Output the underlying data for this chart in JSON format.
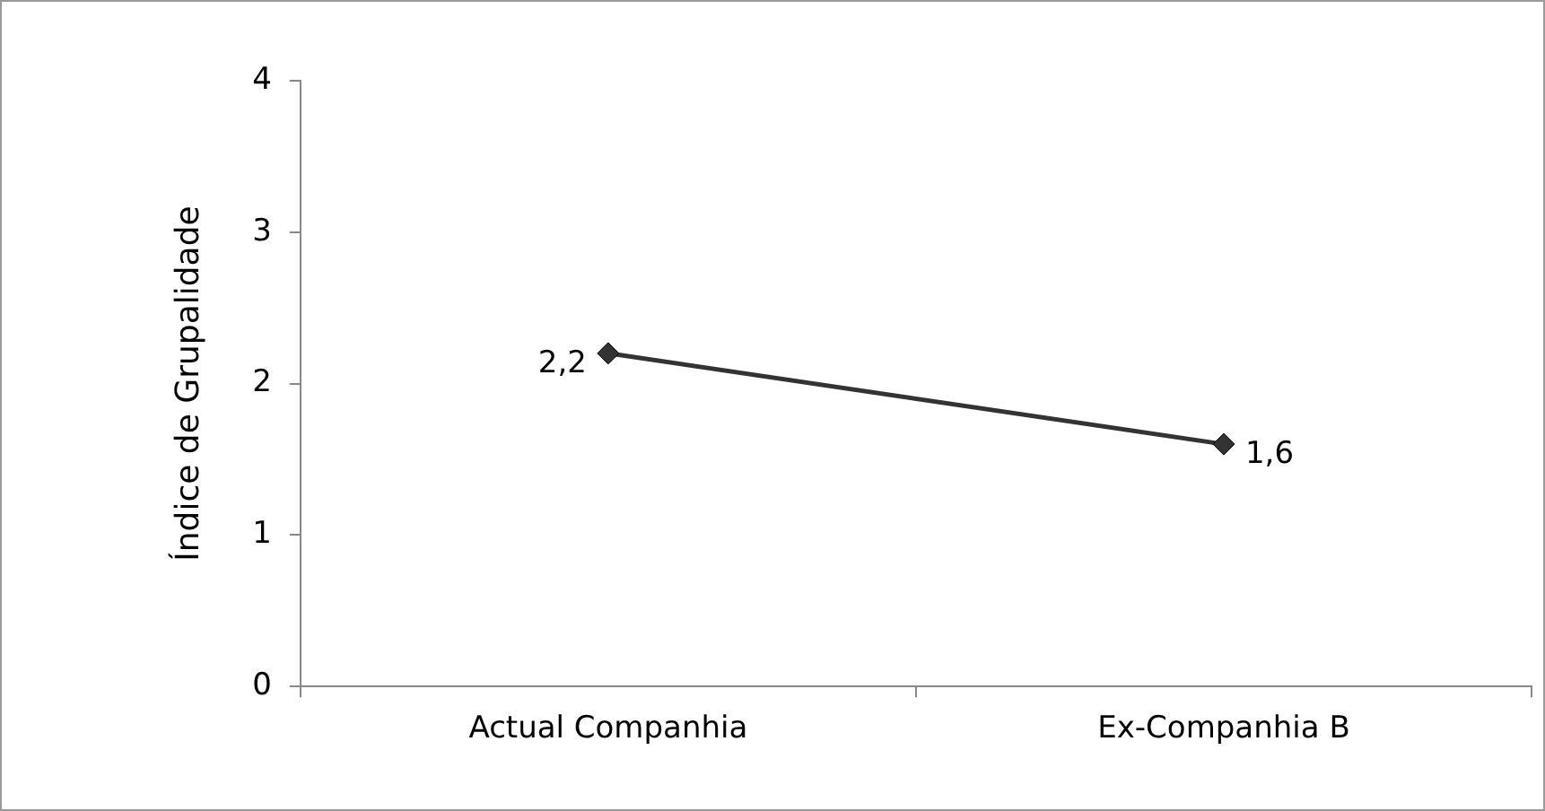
{
  "chart_data": {
    "type": "line",
    "ylabel": "Índice de Grupalidade",
    "categories": [
      "Actual Companhia",
      "Ex-Companhia B"
    ],
    "series": [
      {
        "color": "#333333",
        "values": [
          2.2,
          1.6
        ],
        "value_labels": [
          "2,2",
          "1,6"
        ]
      }
    ],
    "ylim": [
      0,
      4
    ],
    "yticks": [
      0,
      1,
      2,
      3,
      4
    ],
    "grid": false,
    "legend": false,
    "marker": "diamond",
    "line_style": "solid"
  }
}
